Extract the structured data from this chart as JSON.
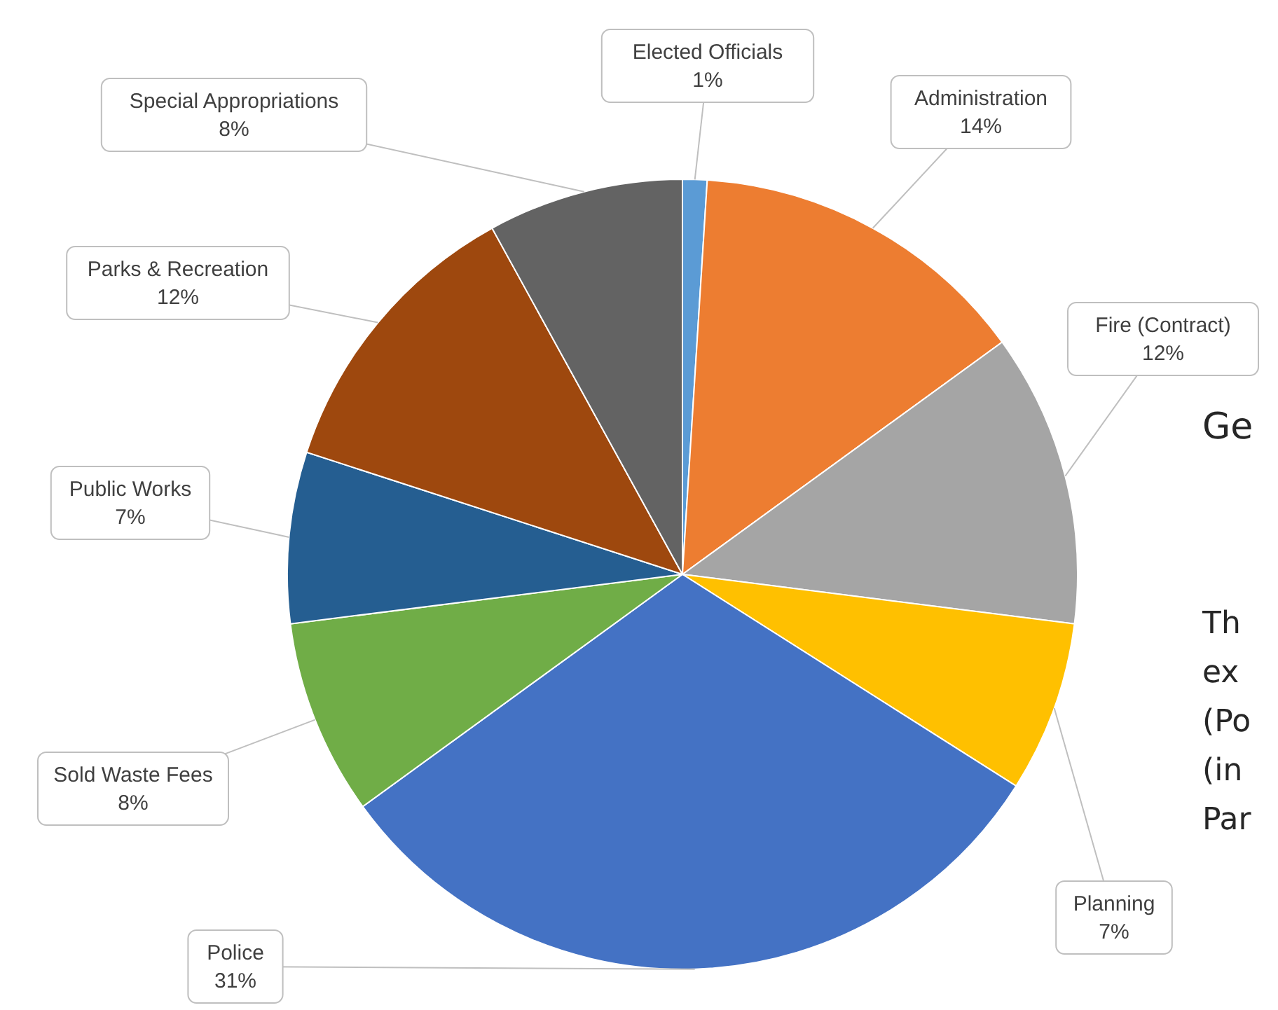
{
  "chart_data": {
    "type": "pie",
    "categories": [
      "Elected Officials",
      "Administration",
      "Fire (Contract)",
      "Planning",
      "Police",
      "Sold Waste Fees",
      "Public Works",
      "Parks & Recreation",
      "Special Appropriations"
    ],
    "values": [
      1,
      14,
      12,
      7,
      31,
      8,
      7,
      12,
      8
    ],
    "value_labels": [
      "1%",
      "14%",
      "12%",
      "7%",
      "31%",
      "8%",
      "7%",
      "12%",
      "8%"
    ],
    "colors": [
      "#5b9bd5",
      "#ed7d31",
      "#a5a5a5",
      "#ffc000",
      "#4472c4",
      "#70ad47",
      "#255e91",
      "#9e480e",
      "#636363"
    ],
    "annotations": [
      "Ge",
      "Th",
      "ex",
      "(Po",
      "(in",
      "Par"
    ]
  }
}
